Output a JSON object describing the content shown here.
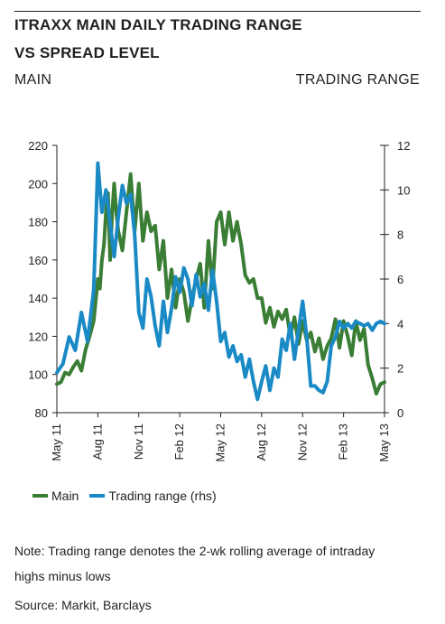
{
  "header": {
    "title_line1": "ITRAXX MAIN DAILY TRADING RANGE",
    "title_line2": "VS SPREAD LEVEL",
    "left_axis_title": "MAIN",
    "right_axis_title": "TRADING RANGE"
  },
  "legend": {
    "main_label": "Main",
    "range_label": "Trading range (rhs)"
  },
  "footer": {
    "note_line1": "Note: Trading range denotes the 2-wk rolling average of intraday",
    "note_line2": "highs minus lows",
    "source": "Source: Markit, Barclays"
  },
  "colors": {
    "main": "#3a7d35",
    "range": "#1a8ac6",
    "axis": "#231f20"
  },
  "chart_data": {
    "type": "line",
    "title": "ITRAXX MAIN DAILY TRADING RANGE VS SPREAD LEVEL",
    "xlabel": "",
    "x_categories": [
      "May 11",
      "Aug 11",
      "Nov 11",
      "Feb 12",
      "May 12",
      "Aug 12",
      "Nov 12",
      "Feb 13",
      "May 13"
    ],
    "y_left": {
      "label": "MAIN",
      "ylim": [
        80,
        220
      ],
      "ticks": [
        80,
        100,
        120,
        140,
        160,
        180,
        200,
        220
      ]
    },
    "y_right": {
      "label": "TRADING RANGE",
      "ylim": [
        0,
        12
      ],
      "ticks": [
        0,
        2,
        4,
        6,
        8,
        10,
        12
      ]
    },
    "grid": false,
    "legend_position": "bottom",
    "series": [
      {
        "name": "Main",
        "axis": "left",
        "x": [
          0,
          0.1,
          0.2,
          0.3,
          0.4,
          0.5,
          0.6,
          0.7,
          0.8,
          0.9,
          1.0,
          1.05,
          1.1,
          1.15,
          1.2,
          1.25,
          1.3,
          1.35,
          1.4,
          1.45,
          1.5,
          1.6,
          1.7,
          1.8,
          1.9,
          2.0,
          2.1,
          2.2,
          2.3,
          2.4,
          2.5,
          2.6,
          2.7,
          2.8,
          2.9,
          3.0,
          3.1,
          3.2,
          3.3,
          3.4,
          3.5,
          3.6,
          3.7,
          3.8,
          3.9,
          4.0,
          4.1,
          4.2,
          4.3,
          4.4,
          4.5,
          4.6,
          4.7,
          4.8,
          4.9,
          5.0,
          5.1,
          5.2,
          5.3,
          5.4,
          5.5,
          5.6,
          5.7,
          5.8,
          5.9,
          6.0,
          6.1,
          6.2,
          6.3,
          6.4,
          6.5,
          6.6,
          6.7,
          6.8,
          6.9,
          7.0,
          7.1,
          7.2,
          7.3,
          7.4,
          7.5,
          7.6,
          7.7,
          7.8,
          7.9,
          8.0
        ],
        "values": [
          95,
          96,
          101,
          100,
          104,
          107,
          102,
          113,
          120,
          128,
          150,
          145,
          160,
          168,
          185,
          195,
          160,
          185,
          200,
          185,
          175,
          165,
          185,
          205,
          175,
          200,
          170,
          185,
          175,
          178,
          155,
          170,
          140,
          155,
          135,
          150,
          143,
          128,
          140,
          150,
          158,
          135,
          170,
          145,
          180,
          185,
          168,
          185,
          170,
          180,
          168,
          152,
          148,
          150,
          140,
          140,
          127,
          135,
          125,
          133,
          129,
          134,
          120,
          130,
          116,
          128,
          118,
          122,
          112,
          119,
          108,
          115,
          119,
          129,
          114,
          128,
          120,
          110,
          128,
          118,
          124,
          105,
          98,
          90,
          95,
          96
        ]
      },
      {
        "name": "Trading range (rhs)",
        "axis": "right",
        "x": [
          0,
          0.15,
          0.3,
          0.45,
          0.6,
          0.75,
          0.9,
          1.0,
          1.1,
          1.2,
          1.3,
          1.4,
          1.5,
          1.6,
          1.7,
          1.8,
          1.9,
          2.0,
          2.1,
          2.2,
          2.3,
          2.4,
          2.5,
          2.6,
          2.7,
          2.8,
          2.9,
          3.0,
          3.1,
          3.2,
          3.3,
          3.4,
          3.5,
          3.6,
          3.7,
          3.8,
          3.9,
          4.0,
          4.1,
          4.2,
          4.3,
          4.4,
          4.5,
          4.6,
          4.7,
          4.8,
          4.9,
          5.0,
          5.1,
          5.2,
          5.3,
          5.4,
          5.5,
          5.6,
          5.7,
          5.8,
          5.9,
          6.0,
          6.1,
          6.2,
          6.3,
          6.4,
          6.5,
          6.6,
          6.7,
          6.8,
          6.9,
          7.0,
          7.1,
          7.2,
          7.3,
          7.4,
          7.5,
          7.6,
          7.7,
          7.8,
          7.9,
          8.0
        ],
        "values": [
          1.8,
          2.2,
          3.4,
          2.8,
          4.5,
          3.2,
          5.5,
          11.2,
          9.0,
          10.0,
          8.5,
          7.0,
          8.8,
          10.2,
          9.4,
          9.8,
          8.0,
          4.5,
          3.8,
          6.0,
          5.2,
          3.9,
          3.0,
          5.0,
          3.6,
          4.7,
          6.1,
          5.4,
          6.5,
          6.0,
          4.8,
          6.2,
          5.2,
          5.8,
          4.6,
          6.4,
          5.0,
          3.2,
          3.6,
          2.5,
          3.0,
          2.3,
          2.6,
          1.6,
          2.4,
          1.4,
          0.6,
          1.4,
          2.1,
          1.0,
          2.0,
          1.6,
          3.3,
          2.8,
          4.0,
          2.4,
          3.7,
          5.0,
          3.4,
          1.2,
          1.2,
          1.0,
          0.9,
          1.4,
          3.0,
          3.4,
          4.1,
          3.8,
          4.0,
          3.8,
          4.1,
          4.0,
          3.9,
          4.0,
          3.7,
          4.0,
          4.1,
          4.0
        ]
      }
    ]
  }
}
